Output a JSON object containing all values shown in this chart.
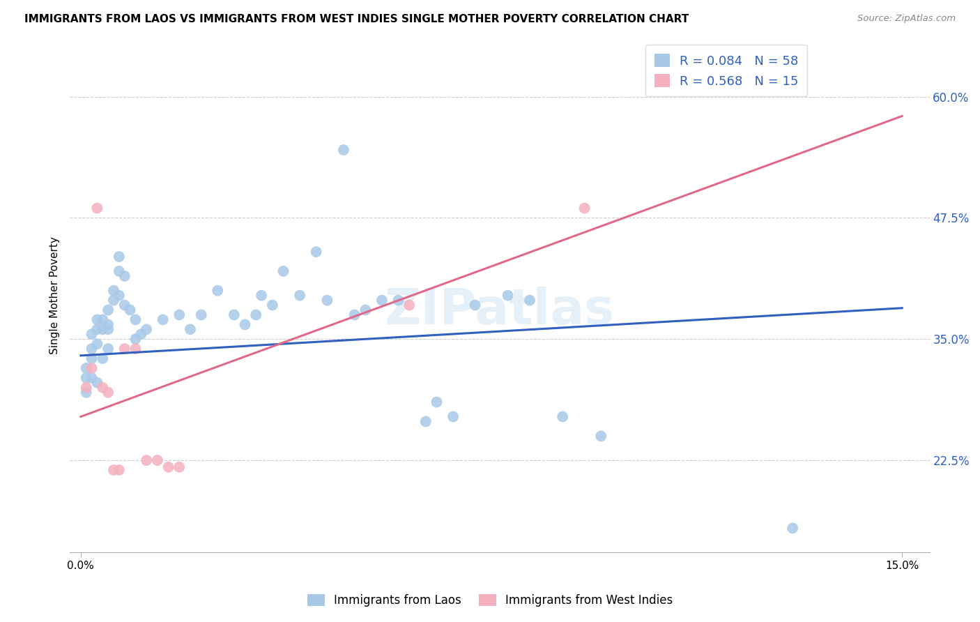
{
  "title": "IMMIGRANTS FROM LAOS VS IMMIGRANTS FROM WEST INDIES SINGLE MOTHER POVERTY CORRELATION CHART",
  "source": "Source: ZipAtlas.com",
  "ylabel": "Single Mother Poverty",
  "ytick_vals": [
    0.225,
    0.35,
    0.475,
    0.6
  ],
  "ytick_labels": [
    "22.5%",
    "35.0%",
    "47.5%",
    "60.0%"
  ],
  "xtick_vals": [
    0.0,
    0.15
  ],
  "xtick_labels": [
    "0.0%",
    "15.0%"
  ],
  "xlim": [
    -0.002,
    0.155
  ],
  "ylim": [
    0.13,
    0.66
  ],
  "legend_r_laos": "R = 0.084",
  "legend_n_laos": "N = 58",
  "legend_r_wi": "R = 0.568",
  "legend_n_wi": "N = 15",
  "color_laos": "#a8c8e8",
  "color_wi": "#f4b0be",
  "line_color_laos": "#3060c0",
  "line_color_wi": "#e06888",
  "watermark": "ZIPatlas",
  "laos_x": [
    0.001,
    0.001,
    0.001,
    0.002,
    0.002,
    0.002,
    0.002,
    0.003,
    0.003,
    0.003,
    0.003,
    0.004,
    0.004,
    0.004,
    0.005,
    0.005,
    0.005,
    0.005,
    0.006,
    0.006,
    0.007,
    0.007,
    0.007,
    0.008,
    0.008,
    0.009,
    0.01,
    0.01,
    0.011,
    0.012,
    0.015,
    0.018,
    0.02,
    0.022,
    0.025,
    0.028,
    0.03,
    0.032,
    0.033,
    0.035,
    0.037,
    0.04,
    0.043,
    0.045,
    0.048,
    0.05,
    0.052,
    0.055,
    0.058,
    0.063,
    0.065,
    0.068,
    0.072,
    0.078,
    0.082,
    0.088,
    0.095,
    0.13
  ],
  "laos_y": [
    0.31,
    0.32,
    0.295,
    0.33,
    0.355,
    0.34,
    0.31,
    0.345,
    0.36,
    0.37,
    0.305,
    0.36,
    0.37,
    0.33,
    0.365,
    0.38,
    0.36,
    0.34,
    0.39,
    0.4,
    0.395,
    0.42,
    0.435,
    0.385,
    0.415,
    0.38,
    0.37,
    0.35,
    0.355,
    0.36,
    0.37,
    0.375,
    0.36,
    0.375,
    0.4,
    0.375,
    0.365,
    0.375,
    0.395,
    0.385,
    0.42,
    0.395,
    0.44,
    0.39,
    0.545,
    0.375,
    0.38,
    0.39,
    0.39,
    0.265,
    0.285,
    0.27,
    0.385,
    0.395,
    0.39,
    0.27,
    0.25,
    0.155
  ],
  "wi_x": [
    0.001,
    0.002,
    0.003,
    0.004,
    0.005,
    0.006,
    0.007,
    0.008,
    0.01,
    0.012,
    0.014,
    0.016,
    0.018,
    0.06,
    0.092
  ],
  "wi_y": [
    0.3,
    0.32,
    0.485,
    0.3,
    0.295,
    0.215,
    0.215,
    0.34,
    0.34,
    0.225,
    0.225,
    0.218,
    0.218,
    0.385,
    0.485
  ],
  "laos_line_x0": 0.0,
  "laos_line_y0": 0.333,
  "laos_line_x1": 0.15,
  "laos_line_y1": 0.382,
  "wi_line_x0": 0.0,
  "wi_line_y0": 0.27,
  "wi_line_x1": 0.15,
  "wi_line_y1": 0.58
}
